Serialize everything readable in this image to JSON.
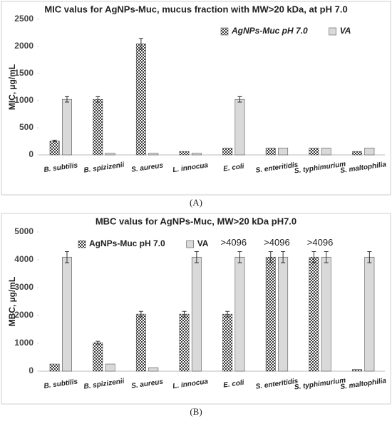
{
  "chart_data": [
    {
      "type": "bar",
      "title": "MIC valus for AgNPs-Muc, mucus fraction with MW>20 kDa, at pH 7.0",
      "y_label": "MIC, µg/mL",
      "caption": "(A)",
      "legend": "top-right",
      "legend_italic": true,
      "categories": [
        "B. subtilis",
        "B. spizizenii",
        "S. aureus",
        "L. innocua",
        "E. coli",
        "S. enteritidis",
        "S. typhimurium",
        "S. maltophilia"
      ],
      "series": [
        {
          "name": "AgNPs-Muc pH 7.0",
          "color": "#3a3a3a",
          "hatch": true,
          "values": [
            256,
            1024,
            2048,
            64,
            128,
            128,
            128,
            64
          ],
          "errors": [
            15,
            50,
            100,
            null,
            null,
            null,
            null,
            null
          ]
        },
        {
          "name": "VA",
          "color": "#d9d9d9",
          "hatch": false,
          "values": [
            1024,
            32,
            32,
            32,
            1024,
            128,
            128,
            128
          ],
          "errors": [
            50,
            null,
            null,
            null,
            50,
            null,
            null,
            null
          ]
        }
      ],
      "ylim": [
        0,
        2500
      ],
      "yticks": [
        0,
        500,
        1000,
        1500,
        2000,
        2500
      ],
      "grid": false
    },
    {
      "type": "bar",
      "title": "MBC valus for AgNPs-Muc, MW>20 kDa pH7.0",
      "y_label": "MBC, µg/mL",
      "caption": "(B)",
      "legend": "top-left",
      "legend_italic": false,
      "categories": [
        "B. subtilis",
        "B. spizizenii",
        "S. aureus",
        "L. innocua",
        "E. coli",
        "S. enteritidis",
        "S. typhimurium",
        "S. maltophilia"
      ],
      "series": [
        {
          "name": "AgNPs-Muc pH 7.0",
          "color": "#3a3a3a",
          "hatch": true,
          "values": [
            256,
            1024,
            2048,
            2048,
            2048,
            4096,
            4096,
            64
          ],
          "errors": [
            null,
            50,
            100,
            100,
            100,
            200,
            200,
            null
          ]
        },
        {
          "name": "VA",
          "color": "#d9d9d9",
          "hatch": false,
          "values": [
            4096,
            256,
            128,
            4096,
            4096,
            4096,
            4096,
            4096
          ],
          "errors": [
            200,
            null,
            null,
            200,
            200,
            200,
            200,
            200
          ]
        }
      ],
      "annotations": [
        {
          "category": "E. coli",
          "text": ">4096"
        },
        {
          "category": "S. enteritidis",
          "text": ">4096"
        },
        {
          "category": "S. typhimurium",
          "text": ">4096"
        }
      ],
      "ylim": [
        0,
        5000
      ],
      "yticks": [
        0,
        1000,
        2000,
        3000,
        4000,
        5000
      ],
      "grid": false
    }
  ]
}
